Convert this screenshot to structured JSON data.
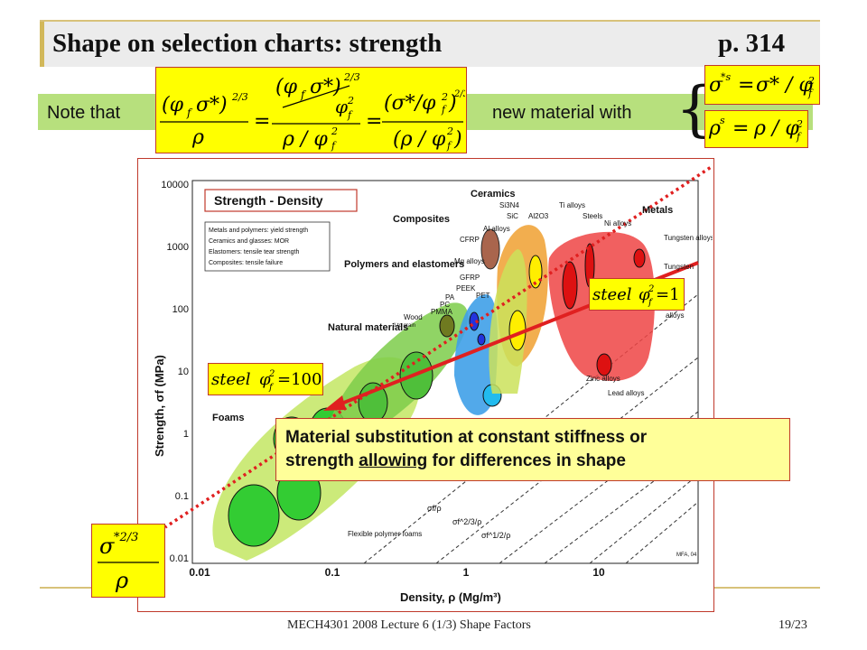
{
  "slide": {
    "title": "Shape on selection charts:  strength",
    "page_ref": "p. 314",
    "note_label": "Note that",
    "new_material_label": "new material with",
    "footer": "MECH4301 2008 Lecture 6 (1/3) Shape Factors",
    "page_number": "19/23"
  },
  "callout": {
    "line1": "Material substitution at constant stiffness or",
    "line2_before": "strength ",
    "line2_underlined": "allowing",
    "line2_after": " for differences in shape"
  },
  "labels": {
    "steel": "steel",
    "phi_one": "=1",
    "phi_hundred": "=100"
  },
  "chart": {
    "title": "Strength - Density",
    "notes": [
      "Metals and polymers: yield strength",
      "Ceramics and glasses: MOR",
      "Elastomers: tensile tear strength",
      "Composites: tensile failure"
    ],
    "ylabel": "Strength, σf (MPa)",
    "xlabel": "Density, ρ (Mg/m³)",
    "yticks": [
      "10000",
      "1000",
      "100",
      "10",
      "1",
      "0.1",
      "0.01"
    ],
    "xticks": [
      "0.01",
      "0.1",
      "1",
      "10"
    ],
    "families": {
      "ceramics": "Ceramics",
      "composites": "Composites",
      "metals": "Metals",
      "polymers": "Polymers and elastomers",
      "natural": "Natural materials",
      "foams": "Foams"
    },
    "materials": {
      "si3n4": "Si3N4",
      "ti": "Ti alloys",
      "sic": "SiC",
      "al2o3": "Al2O3",
      "steels": "Steels",
      "ni": "Ni alloys",
      "w1": "Tungsten alloys",
      "w2": "Tungsten",
      "al": "Al alloys",
      "cfrp": "CFRP",
      "mg": "Mg alloys",
      "gfrp": "GFRP",
      "peek": "PEEK",
      "pa": "PA",
      "pc": "PC",
      "pet": "PET",
      "pmma": "PMMA",
      "wood": "Wood",
      "wood_sub": "// to grain",
      "zinc": "Zinc alloys",
      "lead": "Lead alloys",
      "alloys": "alloys",
      "flex": "Flexible polymer foams",
      "mfa": "MFA, 04"
    },
    "guide_labels": [
      "σf/ρ",
      "σf^2/3/ρ",
      "σf^1/2/ρ"
    ]
  }
}
